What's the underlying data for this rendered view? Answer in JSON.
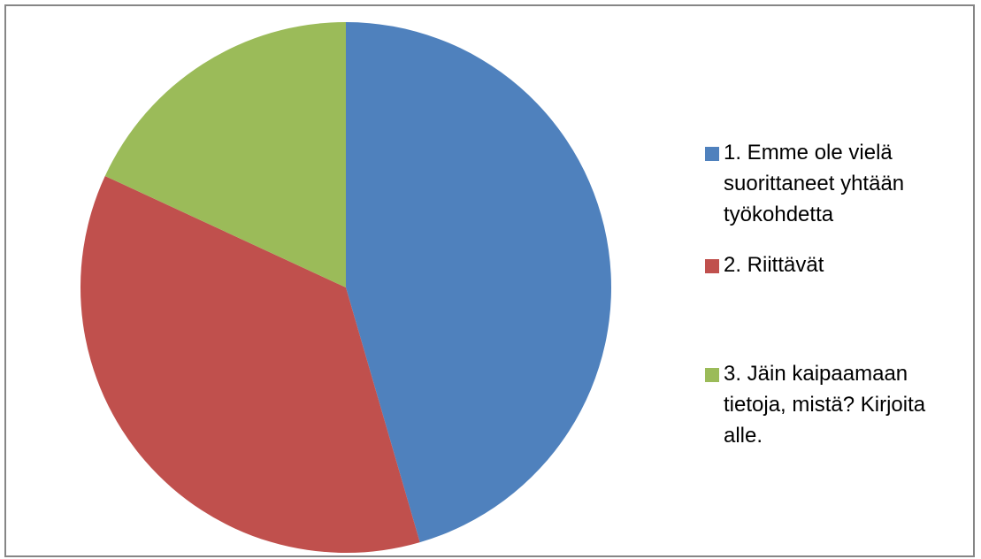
{
  "chart_data": {
    "type": "pie",
    "title": "",
    "legend_position": "right",
    "slices": [
      {
        "label": "1. Emme ole vielä suorittaneet yhtään työkohdetta",
        "value": 45.5,
        "color": "#4f81bd"
      },
      {
        "label": "2. Riittävät",
        "value": 36.4,
        "color": "#c0504d"
      },
      {
        "label": "3. Jäin kaipaamaan tietoja, mistä? Kirjoita alle.",
        "value": 18.1,
        "color": "#9bbb59"
      }
    ]
  },
  "legend": {
    "items": [
      {
        "text": "1. Emme ole vielä\nsuorittaneet yhtään\ntyökohdetta",
        "color": "#4f81bd"
      },
      {
        "text": "2. Riittävät",
        "color": "#c0504d"
      },
      {
        "text": "3. Jäin kaipaamaan\ntietoja, mistä? Kirjoita\nalle.",
        "color": "#9bbb59"
      }
    ]
  }
}
